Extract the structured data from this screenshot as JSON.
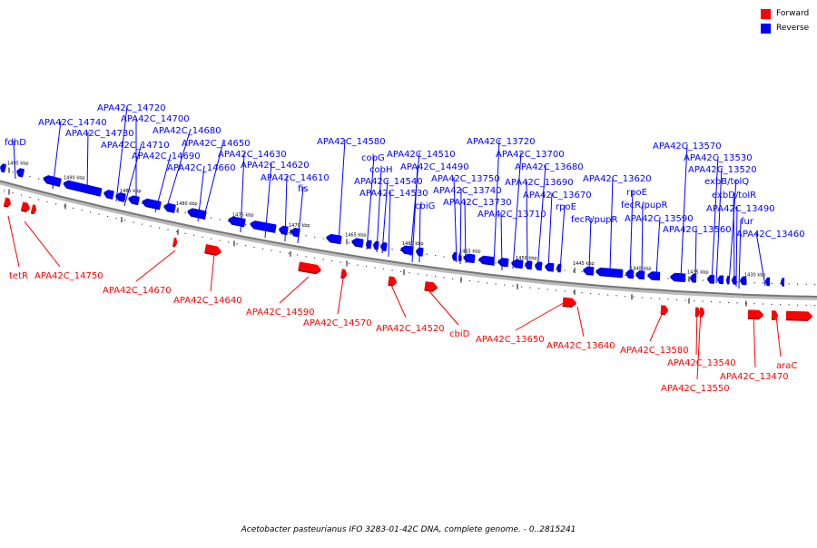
{
  "colors": {
    "forward": "#ff0000",
    "reverse": "#0000ff",
    "backbone": "#777777"
  },
  "legend": [
    {
      "label": "Forward",
      "color": "#ff0000"
    },
    {
      "label": "Reverse",
      "color": "#0000ff"
    }
  ],
  "caption": "Acetobacter pasteurianus IFO 3283-01-42C DNA, complete genome. - 0..2815241",
  "ruler_labels": [
    "1495 kbp",
    "1490 kbp",
    "1485 kbp",
    "1480 kbp",
    "1475 kbp",
    "1470 kbp",
    "1465 kbp",
    "1460 kbp",
    "1455 kbp",
    "1450 kbp",
    "1445 kbp",
    "1440 kbp",
    "1435 kbp",
    "1430 kbp"
  ],
  "reverse_genes": [
    "fdhD",
    "APA42C_14740",
    "APA42C_14730",
    "APA42C_14720",
    "APA42C_14710",
    "APA42C_14700",
    "APA42C_14690",
    "APA42C_14680",
    "APA42C_14660",
    "APA42C_14650",
    "APA42C_14630",
    "APA42C_14620",
    "APA42C_14610",
    "fis",
    "APA42C_14580",
    "cobG",
    "cobH",
    "APA42C_14540",
    "APA42C_14530",
    "APA42C_14510",
    "APA42C_14490",
    "cbiG",
    "APA42C_13750",
    "APA42C_13740",
    "APA42C_13730",
    "APA42C_13720",
    "APA42C_13700",
    "APA42C_13710",
    "APA42C_13690",
    "APA42C_13680",
    "APA42C_13670",
    "rpoE",
    "fecR/pupR",
    "APA42C_13620",
    "rpoE",
    "fecR/pupR",
    "APA42C_13590",
    "APA42C_13570",
    "APA42C_13560",
    "APA42C_13530",
    "APA42C_13520",
    "exbB/tolQ",
    "exbD/tolR",
    "APA42C_13490",
    "fur",
    "APA42C_13460"
  ],
  "forward_genes": [
    "tetR",
    "APA42C_14750",
    "APA42C_14670",
    "APA42C_14640",
    "APA42C_14590",
    "APA42C_14570",
    "APA42C_14520",
    "cbiD",
    "APA42C_13650",
    "APA42C_13640",
    "APA42C_13580",
    "APA42C_13540",
    "APA42C_13550",
    "APA42C_13470",
    "araC"
  ]
}
